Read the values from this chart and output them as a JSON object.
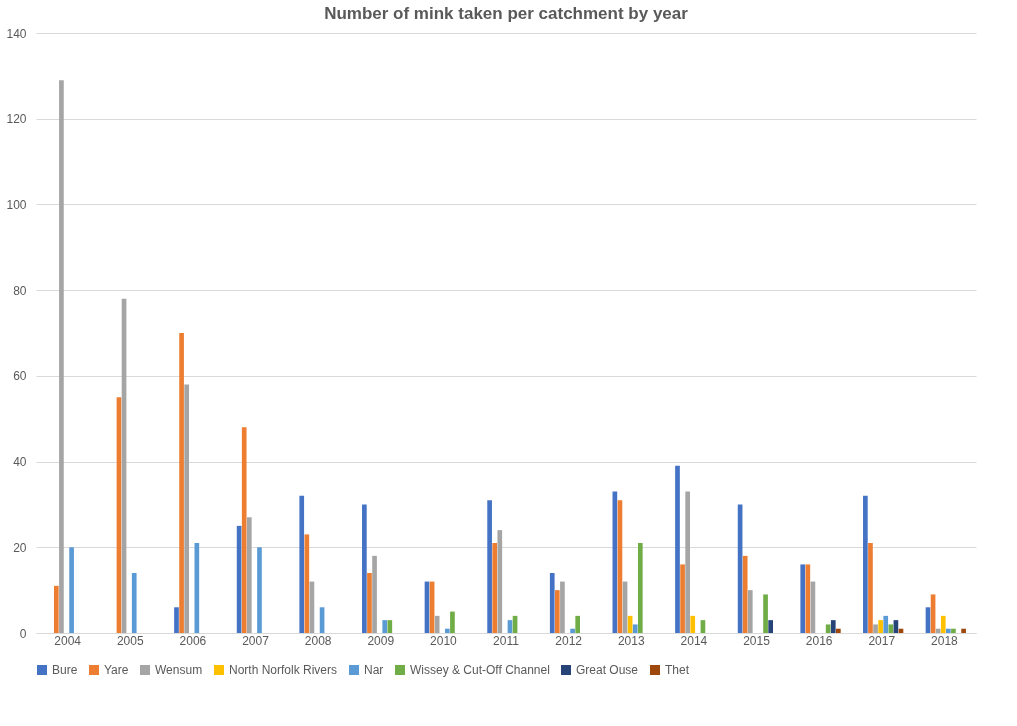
{
  "chart_data": {
    "type": "bar",
    "title": "Number of mink taken per catchment by year",
    "categories": [
      "2004",
      "2005",
      "2006",
      "2007",
      "2008",
      "2009",
      "2010",
      "2011",
      "2012",
      "2013",
      "2014",
      "2015",
      "2016",
      "2017",
      "2018"
    ],
    "series": [
      {
        "name": "Bure",
        "color": "#4472c4",
        "values": [
          null,
          null,
          6,
          25,
          32,
          30,
          12,
          31,
          14,
          33,
          39,
          30,
          16,
          32,
          6
        ]
      },
      {
        "name": "Yare",
        "color": "#ed7d31",
        "values": [
          11,
          55,
          70,
          48,
          23,
          14,
          12,
          21,
          10,
          31,
          16,
          18,
          16,
          21,
          9
        ]
      },
      {
        "name": "Wensum",
        "color": "#a5a5a5",
        "values": [
          129,
          78,
          58,
          27,
          12,
          18,
          4,
          24,
          12,
          12,
          33,
          10,
          12,
          2,
          1
        ]
      },
      {
        "name": "North Norfolk Rivers",
        "color": "#ffc000",
        "values": [
          null,
          null,
          null,
          null,
          null,
          null,
          null,
          null,
          null,
          4,
          4,
          null,
          null,
          3,
          4
        ]
      },
      {
        "name": "Nar",
        "color": "#5b9bd5",
        "values": [
          20,
          14,
          21,
          20,
          6,
          3,
          1,
          3,
          1,
          2,
          null,
          null,
          null,
          4,
          1
        ]
      },
      {
        "name": "Wissey & Cut-Off Channel",
        "color": "#70ad47",
        "values": [
          null,
          null,
          null,
          null,
          null,
          3,
          5,
          4,
          4,
          21,
          3,
          9,
          2,
          2,
          1
        ]
      },
      {
        "name": "Great Ouse",
        "color": "#264478",
        "values": [
          null,
          null,
          null,
          null,
          null,
          null,
          null,
          null,
          null,
          null,
          null,
          3,
          3,
          3,
          null
        ]
      },
      {
        "name": "Thet",
        "color": "#9e480e",
        "values": [
          null,
          null,
          null,
          null,
          null,
          null,
          null,
          null,
          null,
          null,
          null,
          null,
          1,
          1,
          1
        ]
      }
    ],
    "ylim": [
      0,
      140
    ],
    "yticks": [
      0,
      20,
      40,
      60,
      80,
      100,
      120,
      140
    ],
    "grid": "y",
    "legend": "bottom"
  }
}
